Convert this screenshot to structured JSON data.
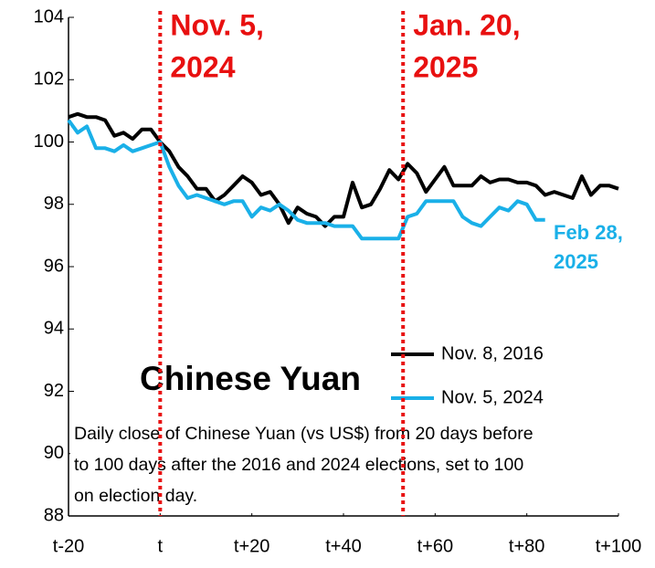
{
  "chart_data": {
    "type": "line",
    "title": "Chinese Yuan",
    "note_lines": [
      "Daily close of Chinese Yuan (vs US$) from 20 days before",
      "to 100 days after the 2016 and 2024 elections, set to 100",
      "on election day."
    ],
    "x": [
      -20,
      -18,
      -16,
      -14,
      -12,
      -10,
      -8,
      -6,
      -4,
      -2,
      0,
      2,
      4,
      6,
      8,
      10,
      12,
      14,
      16,
      18,
      20,
      22,
      24,
      26,
      28,
      30,
      32,
      34,
      36,
      38,
      40,
      42,
      44,
      46,
      48,
      50,
      52,
      54,
      56,
      58,
      60,
      62,
      64,
      66,
      68,
      70,
      72,
      74,
      76,
      78,
      80,
      82,
      84,
      86,
      88,
      90,
      92,
      94,
      96,
      98,
      100
    ],
    "series": [
      {
        "name": "Nov. 8, 2016",
        "color": "#000000",
        "values": [
          100.8,
          100.9,
          100.8,
          100.8,
          100.7,
          100.2,
          100.3,
          100.1,
          100.4,
          100.4,
          100.0,
          99.7,
          99.2,
          98.9,
          98.5,
          98.5,
          98.1,
          98.3,
          98.6,
          98.9,
          98.7,
          98.3,
          98.4,
          98.0,
          97.4,
          97.9,
          97.7,
          97.6,
          97.3,
          97.6,
          97.6,
          98.7,
          97.9,
          98.0,
          98.5,
          99.1,
          98.8,
          99.3,
          99.0,
          98.4,
          98.8,
          99.2,
          98.6,
          98.6,
          98.6,
          98.9,
          98.7,
          98.8,
          98.8,
          98.7,
          98.7,
          98.6,
          98.3,
          98.4,
          98.3,
          98.2,
          98.9,
          98.3,
          98.6,
          98.6,
          98.5
        ]
      },
      {
        "name": "Nov. 5, 2024",
        "color": "#1ab0e8",
        "values": [
          100.7,
          100.3,
          100.5,
          99.8,
          99.8,
          99.7,
          99.9,
          99.7,
          99.8,
          99.9,
          100.0,
          99.2,
          98.6,
          98.2,
          98.3,
          98.2,
          98.1,
          98.0,
          98.1,
          98.1,
          97.6,
          97.9,
          97.8,
          98.0,
          97.8,
          97.5,
          97.4,
          97.4,
          97.4,
          97.3,
          97.3,
          97.3,
          96.9,
          96.9,
          96.9,
          96.9,
          96.9,
          97.6,
          97.7,
          98.1,
          98.1,
          98.1,
          98.1,
          97.6,
          97.4,
          97.3,
          97.6,
          97.9,
          97.8,
          98.1,
          98.0,
          97.5,
          97.5,
          null,
          null,
          null,
          null,
          null,
          null,
          null,
          null
        ]
      }
    ],
    "xlim": [
      -20,
      100
    ],
    "xticks": [
      {
        "value": -20,
        "label": "t-20"
      },
      {
        "value": 0,
        "label": "t"
      },
      {
        "value": 20,
        "label": "t+20"
      },
      {
        "value": 40,
        "label": "t+40"
      },
      {
        "value": 60,
        "label": "t+60"
      },
      {
        "value": 80,
        "label": "t+80"
      },
      {
        "value": 100,
        "label": "t+100"
      }
    ],
    "ylim": [
      88,
      104
    ],
    "yticks": [
      88,
      90,
      92,
      94,
      96,
      98,
      100,
      102,
      104
    ],
    "markers": [
      {
        "x": 0,
        "label_lines": [
          "Nov. 5,",
          "2024"
        ],
        "color": "#e81010"
      },
      {
        "x": 53,
        "label_lines": [
          "Jan. 20,",
          "2025"
        ],
        "color": "#e81010"
      }
    ],
    "end_label_lines": [
      "Feb 28,",
      "2025"
    ]
  }
}
